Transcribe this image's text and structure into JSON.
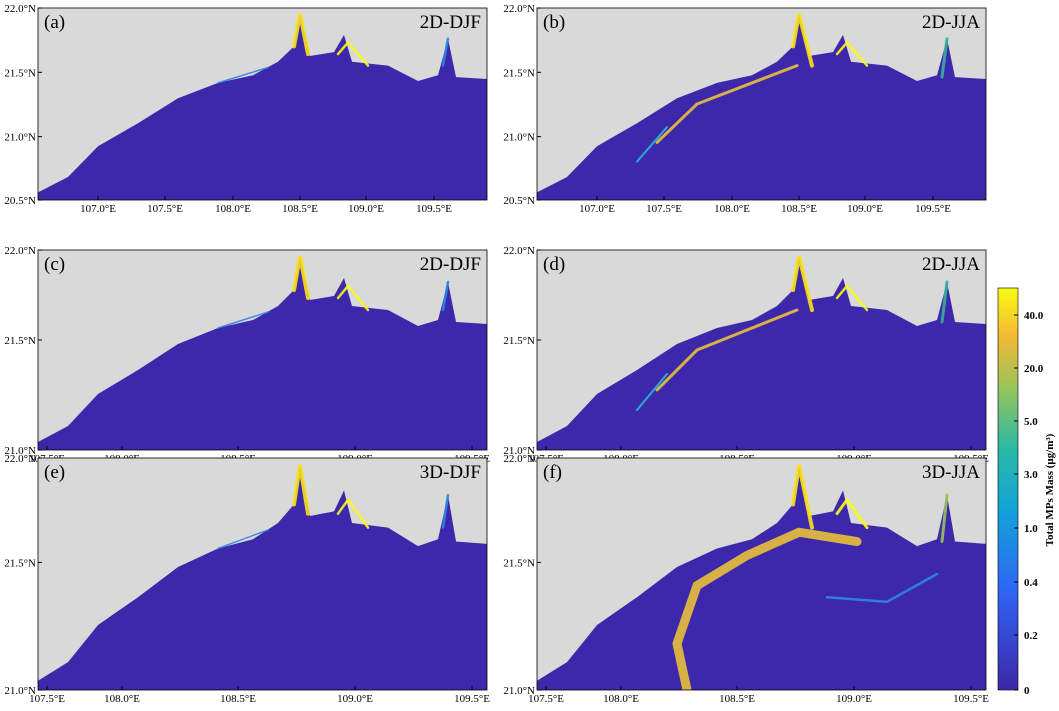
{
  "panels": [
    {
      "label": "(a)",
      "title": "2D-DJF",
      "xticks": [
        "107.0°E",
        "107.5°E",
        "108.0°E",
        "108.5°E",
        "109.0°E",
        "109.5°E"
      ],
      "yticks": [
        "22.0°N",
        "21.5°N",
        "21.0°N",
        "20.5°N"
      ]
    },
    {
      "label": "(b)",
      "title": "2D-JJA",
      "xticks": [
        "107.0°E",
        "107.5°E",
        "108.0°E",
        "108.5°E",
        "109.0°E",
        "109.5°E"
      ],
      "yticks": [
        "22.0°N",
        "21.5°N",
        "21.0°N",
        "20.5°N"
      ]
    },
    {
      "label": "(c)",
      "title": "2D-DJF",
      "xticks": [
        "107.5°E",
        "108.0°E",
        "108.5°E",
        "109.0°E",
        "109.5°E"
      ],
      "yticks": [
        "22.0°N",
        "21.5°N",
        "21.0°N"
      ]
    },
    {
      "label": "(d)",
      "title": "2D-JJA",
      "xticks": [
        "107.5°E",
        "108.0°E",
        "108.5°E",
        "109.0°E",
        "109.5°E"
      ],
      "yticks": [
        "22.0°N",
        "21.5°N",
        "21.0°N"
      ]
    },
    {
      "label": "(e)",
      "title": "3D-DJF",
      "xticks": [
        "107.5°E",
        "108.0°E",
        "108.5°E",
        "109.0°E",
        "109.5°E"
      ],
      "yticks": [
        "22.0°N",
        "21.5°N",
        "21.0°N"
      ]
    },
    {
      "label": "(f)",
      "title": "3D-JJA",
      "xticks": [
        "107.5°E",
        "108.0°E",
        "108.5°E",
        "109.0°E",
        "109.5°E"
      ],
      "yticks": [
        "22.0°N",
        "21.5°N",
        "21.0°N"
      ]
    }
  ],
  "colorbar": {
    "label": "Total MPs Mass (μg/m³)",
    "ticks": [
      "0",
      "0.2",
      "0.4",
      "1.0",
      "3.0",
      "5.0",
      "20.0",
      "40.0"
    ]
  }
}
